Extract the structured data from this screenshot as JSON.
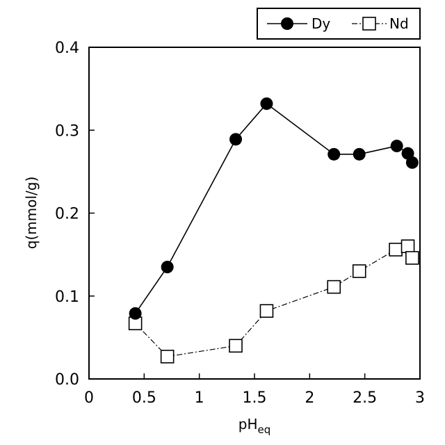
{
  "chart_data": {
    "type": "scatter",
    "xlabel": "pH",
    "xlabel_sub": "eq",
    "ylabel": "q(mmol/g)",
    "xlim": [
      0,
      3
    ],
    "ylim": [
      0,
      0.4
    ],
    "x_ticks": [
      0,
      0.5,
      1,
      1.5,
      2,
      2.5,
      3
    ],
    "x_tick_labels": [
      "0",
      "0.5",
      "1",
      "1.5",
      "2",
      "2.5",
      "3"
    ],
    "y_ticks": [
      0,
      0.1,
      0.2,
      0.3,
      0.4
    ],
    "y_tick_labels": [
      "0.0",
      "0.1",
      "0.2",
      "0.3",
      "0.4"
    ],
    "grid": false,
    "legend_position": "top-right",
    "series": [
      {
        "name": "Dy",
        "marker": "filled-circle",
        "line_style": "solid",
        "color": "#000000",
        "points": [
          {
            "x": 0.42,
            "y": 0.079
          },
          {
            "x": 0.71,
            "y": 0.135
          },
          {
            "x": 1.33,
            "y": 0.289
          },
          {
            "x": 1.61,
            "y": 0.332
          },
          {
            "x": 2.22,
            "y": 0.271
          },
          {
            "x": 2.45,
            "y": 0.271
          },
          {
            "x": 2.79,
            "y": 0.281
          },
          {
            "x": 2.89,
            "y": 0.272
          },
          {
            "x": 2.93,
            "y": 0.261
          }
        ]
      },
      {
        "name": "Nd",
        "marker": "open-square",
        "line_style": "dash-dot",
        "color": "#000000",
        "points": [
          {
            "x": 0.42,
            "y": 0.067
          },
          {
            "x": 0.71,
            "y": 0.027
          },
          {
            "x": 1.33,
            "y": 0.04
          },
          {
            "x": 1.61,
            "y": 0.082
          },
          {
            "x": 2.22,
            "y": 0.111
          },
          {
            "x": 2.45,
            "y": 0.13
          },
          {
            "x": 2.78,
            "y": 0.156
          },
          {
            "x": 2.89,
            "y": 0.16
          },
          {
            "x": 2.93,
            "y": 0.146
          }
        ]
      }
    ]
  }
}
